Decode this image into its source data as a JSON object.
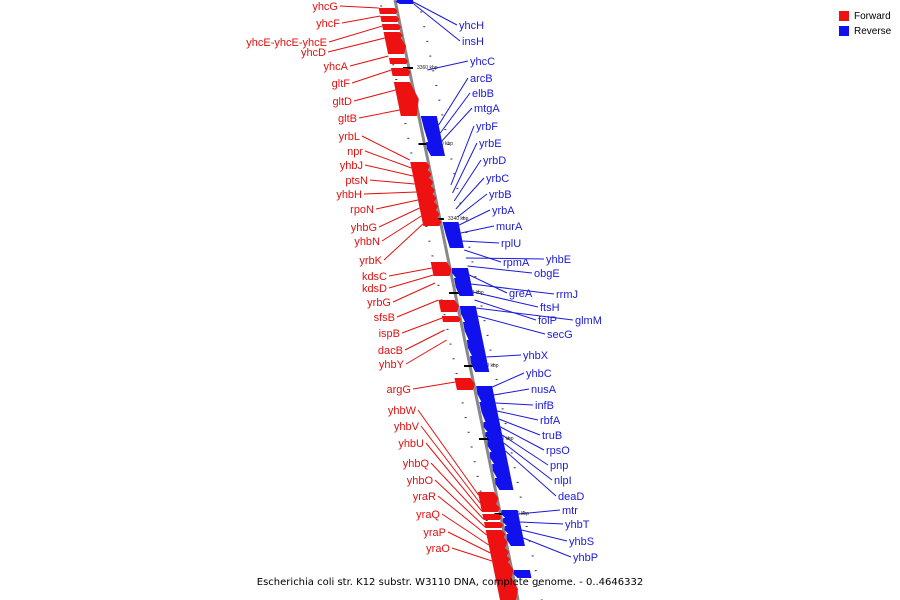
{
  "caption": "Escherichia coli str. K12 substr. W3110 DNA, complete genome. - 0..4646332",
  "legend": [
    {
      "label": "Forward",
      "color": "#ee1111"
    },
    {
      "label": "Reverse",
      "color": "#1111ee"
    }
  ],
  "colors": {
    "forward_fill": "#ee1111",
    "reverse_fill": "#1111ee",
    "forward_line": "#e31010",
    "reverse_line": "#1a1ad8",
    "axis": "#888888"
  },
  "ticks": [
    "3360 kbp",
    "3350 kbp",
    "3340 kbp",
    "3330 kbp",
    "3320 kbp",
    "3310 kbp",
    "3300 kbp"
  ],
  "forward_genes": [
    "yhcG",
    "yhcF",
    "yhcE-yhcE-yhcE",
    "yhcD",
    "yhcA",
    "gltF",
    "gltD",
    "gltB",
    "yrbL",
    "npr",
    "yhbJ",
    "ptsN",
    "yhbH",
    "rpoN",
    "yhbG",
    "yhbN",
    "yrbK",
    "kdsC",
    "kdsD",
    "yrbG",
    "sfsB",
    "ispB",
    "dacB",
    "yhbY",
    "argG",
    "yhbW",
    "yhbV",
    "yhbU",
    "yhbQ",
    "yhbO",
    "yraR",
    "yraQ",
    "yraP",
    "yraO"
  ],
  "reverse_genes": [
    "yhcH",
    "insH",
    "yhcC",
    "arcB",
    "elbB",
    "mtgA",
    "yrbF",
    "yrbE",
    "yrbD",
    "yrbC",
    "yrbB",
    "yrbA",
    "murA",
    "rplU",
    "rpmA",
    "yhbE",
    "obgE",
    "greA",
    "rrmJ",
    "ftsH",
    "folP",
    "glmM",
    "secG",
    "yhbX",
    "yhbC",
    "nusA",
    "infB",
    "rbfA",
    "truB",
    "rpsO",
    "pnp",
    "nlpI",
    "deaD",
    "mtr",
    "yhbT",
    "yhbS",
    "yhbP"
  ]
}
